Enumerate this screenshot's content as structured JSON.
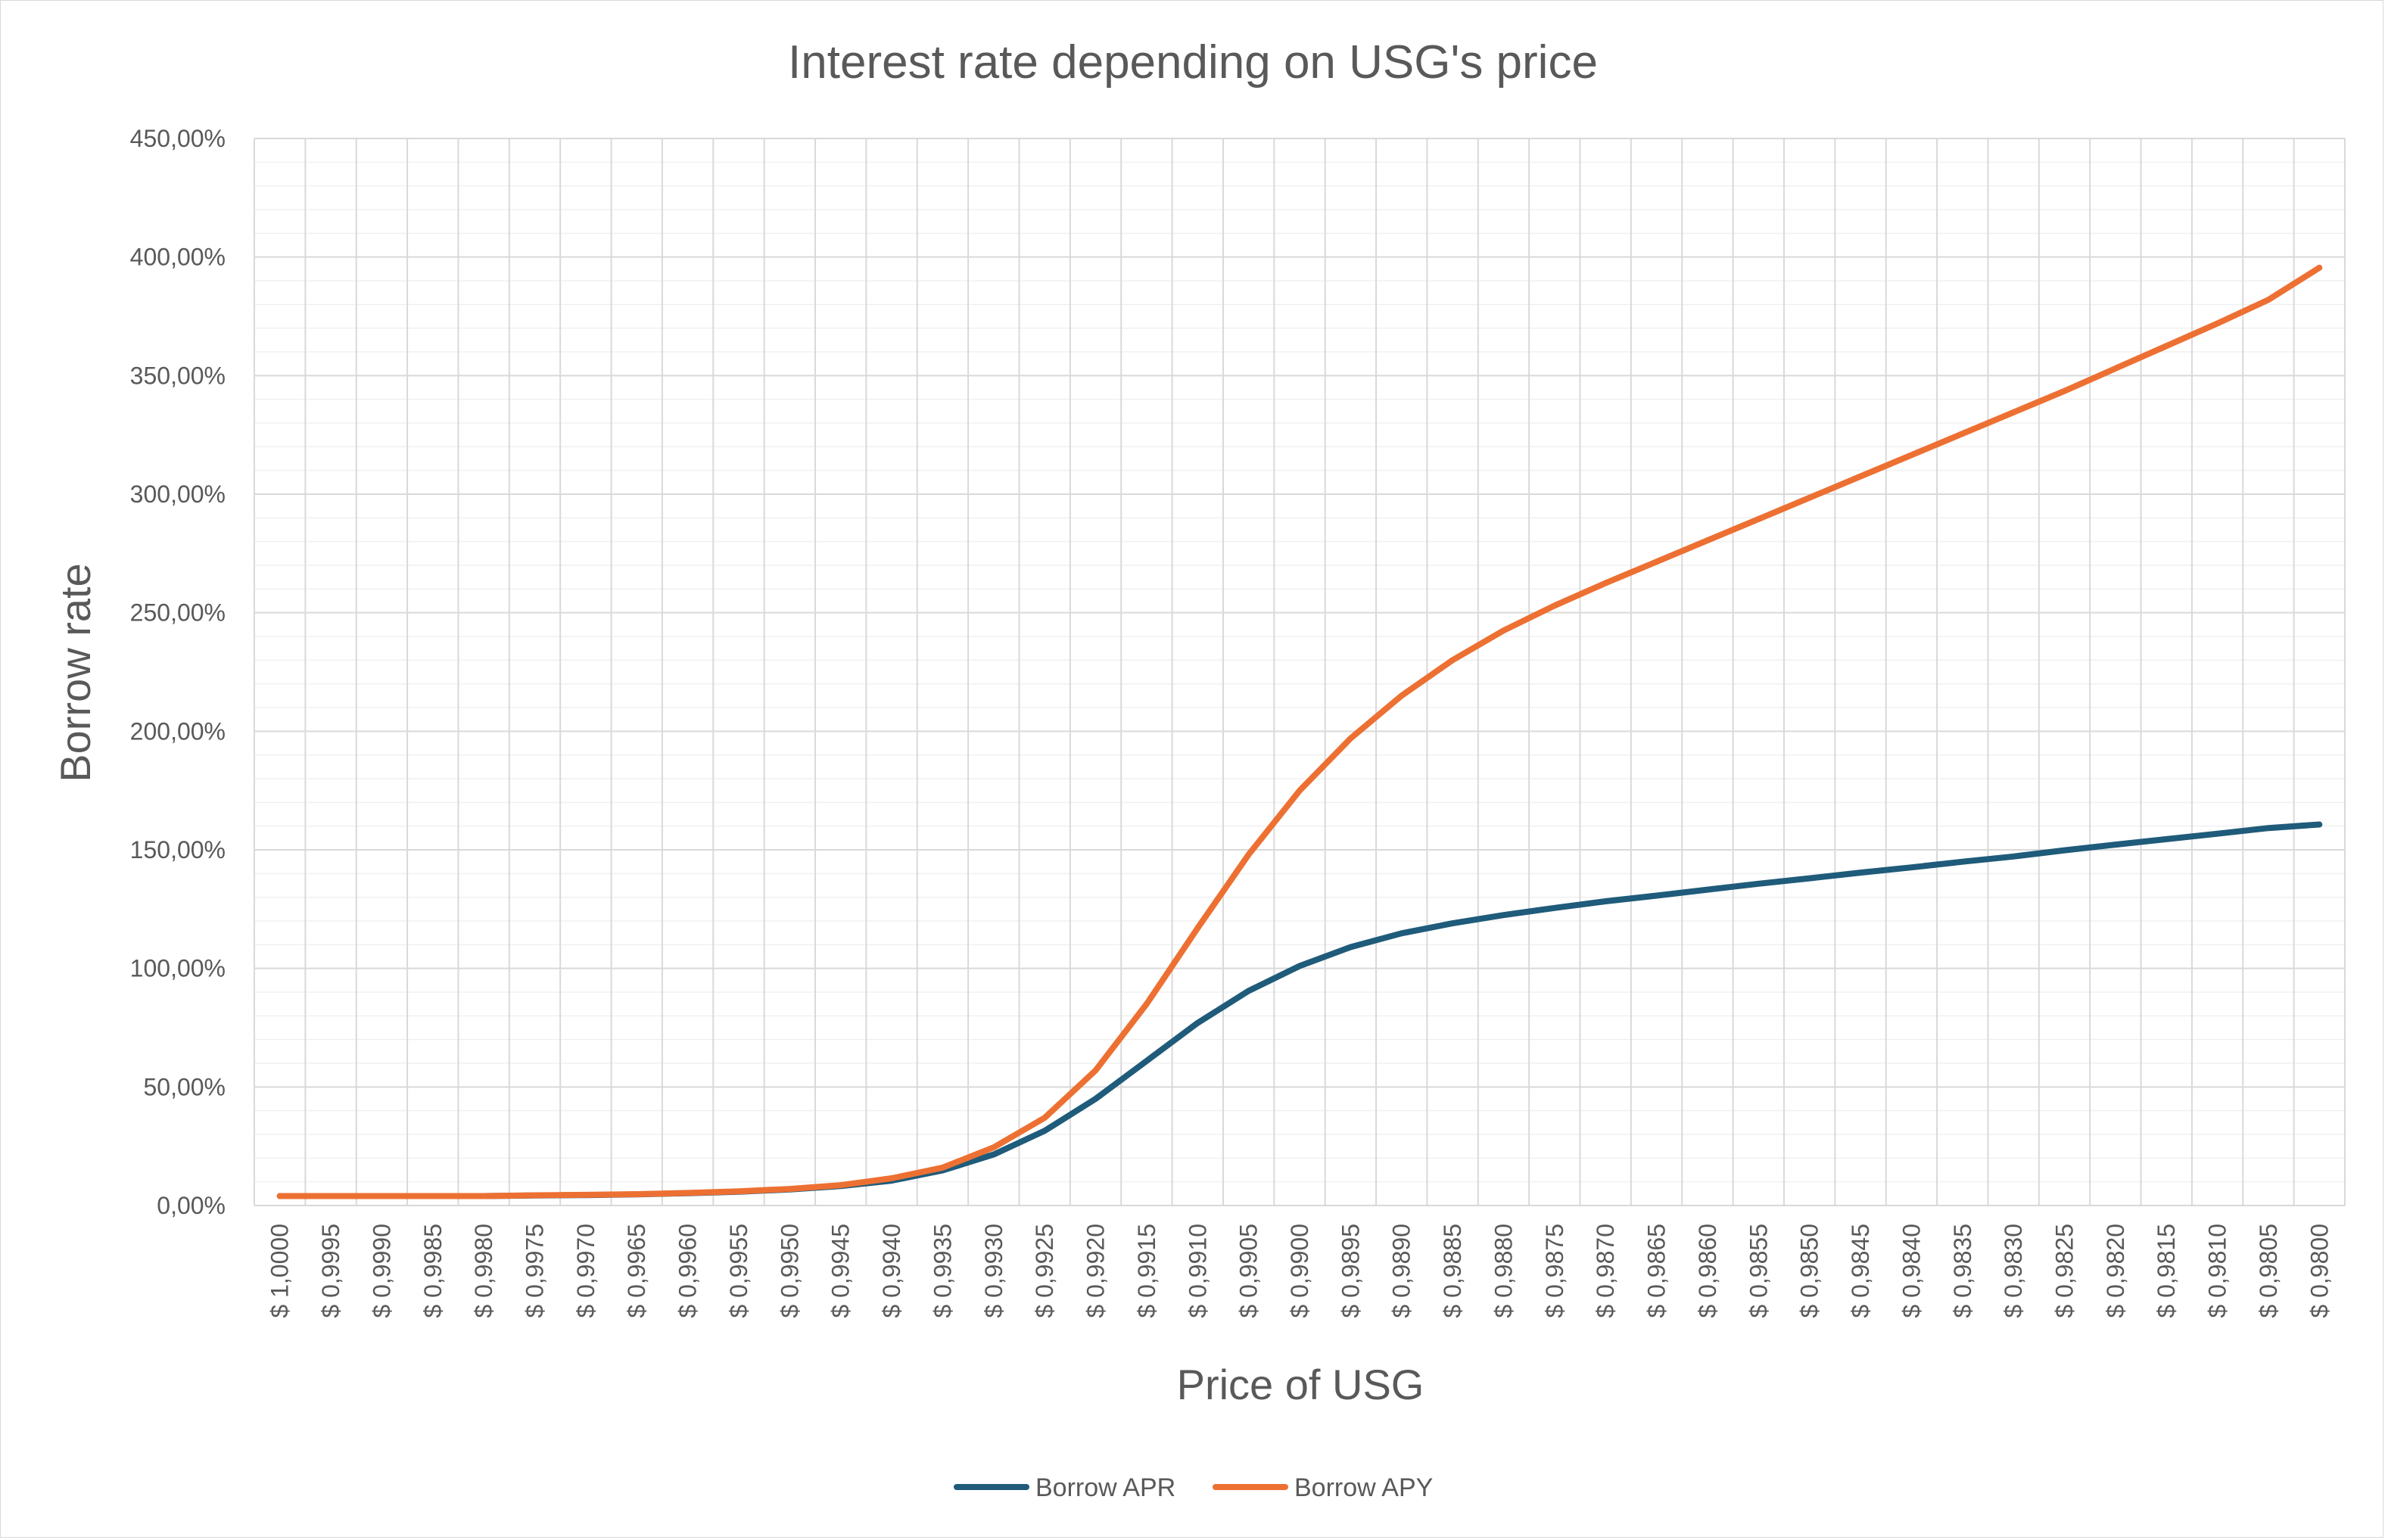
{
  "chart_data": {
    "type": "line",
    "title": "Interest rate depending on USG's price",
    "xlabel": "Price of USG",
    "ylabel": "Borrow rate",
    "ylim": [
      0,
      450
    ],
    "y_tick_labels": [
      "0,00%",
      "50,00%",
      "100,00%",
      "150,00%",
      "200,00%",
      "250,00%",
      "300,00%",
      "350,00%",
      "400,00%",
      "450,00%"
    ],
    "grid": true,
    "legend_position": "bottom",
    "categories": [
      "$ 1,0000",
      "$ 0,9995",
      "$ 0,9990",
      "$ 0,9985",
      "$ 0,9980",
      "$ 0,9975",
      "$ 0,9970",
      "$ 0,9965",
      "$ 0,9960",
      "$ 0,9955",
      "$ 0,9950",
      "$ 0,9945",
      "$ 0,9940",
      "$ 0,9935",
      "$ 0,9930",
      "$ 0,9925",
      "$ 0,9920",
      "$ 0,9915",
      "$ 0,9910",
      "$ 0,9905",
      "$ 0,9900",
      "$ 0,9895",
      "$ 0,9890",
      "$ 0,9885",
      "$ 0,9880",
      "$ 0,9875",
      "$ 0,9870",
      "$ 0,9865",
      "$ 0,9860",
      "$ 0,9855",
      "$ 0,9850",
      "$ 0,9845",
      "$ 0,9840",
      "$ 0,9835",
      "$ 0,9830",
      "$ 0,9825",
      "$ 0,9820",
      "$ 0,9815",
      "$ 0,9810",
      "$ 0,9805",
      "$ 0,9800"
    ],
    "series": [
      {
        "name": "Borrow APR",
        "color": "#1f5b7a",
        "values": [
          4,
          4,
          4,
          4,
          4,
          4.2,
          4.4,
          4.7,
          5.2,
          5.8,
          6.8,
          8.2,
          10.5,
          14.8,
          21.5,
          31.5,
          45,
          61,
          77,
          90.5,
          101,
          109,
          114.8,
          119,
          122.5,
          125.5,
          128.3,
          130.7,
          133.2,
          135.7,
          138,
          140.4,
          142.6,
          145,
          147.2,
          149.8,
          152.2,
          154.5,
          156.8,
          159.2,
          160.7
        ]
      },
      {
        "name": "Borrow APY",
        "color": "#ed7033",
        "values": [
          4,
          4,
          4,
          4,
          4,
          4.3,
          4.5,
          4.8,
          5.3,
          6,
          7,
          8.6,
          11.5,
          16,
          24.5,
          37,
          57,
          85,
          117,
          148,
          175,
          197,
          215,
          230,
          242.5,
          253,
          262.5,
          271.5,
          280.5,
          289.5,
          298.5,
          307.5,
          316.5,
          325.5,
          334.5,
          343.5,
          353,
          362.5,
          372,
          382,
          395.5
        ]
      }
    ]
  }
}
